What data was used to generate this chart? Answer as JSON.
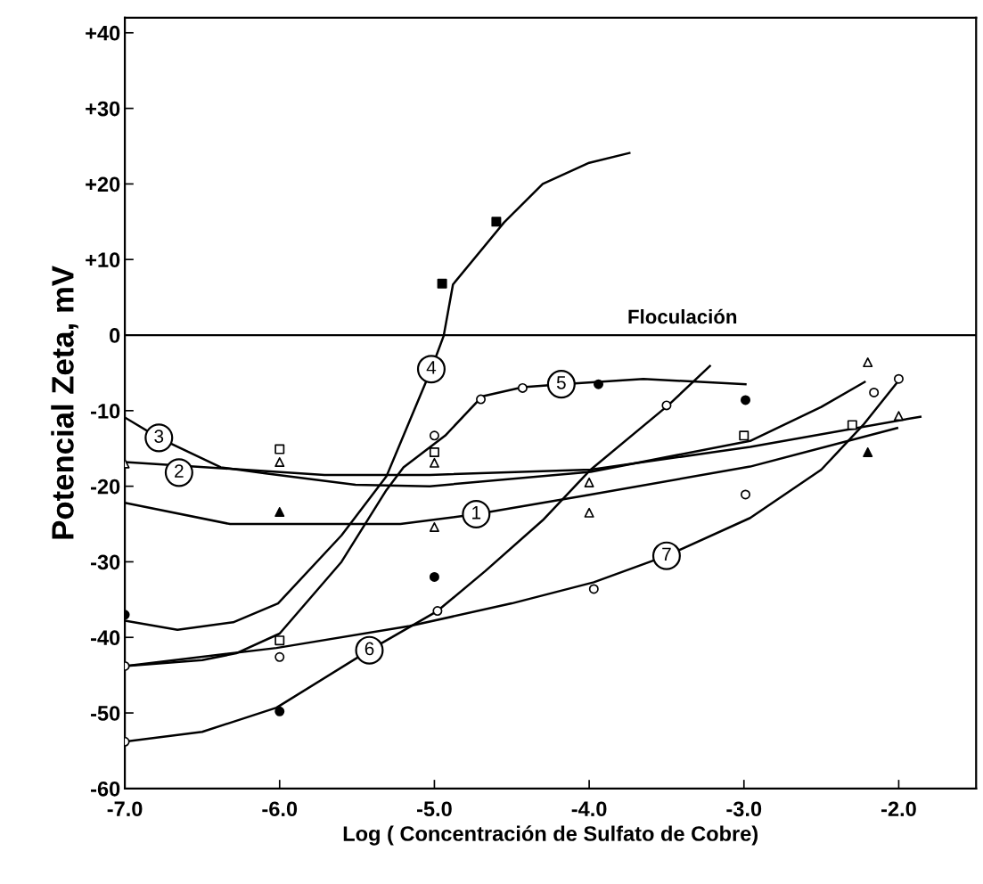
{
  "chart_data": {
    "type": "line",
    "xlabel": "Log ( Concentración de Sulfato de Cobre)",
    "ylabel": "Potencial Zeta, mV",
    "xlim": [
      -7,
      -1.5
    ],
    "ylim": [
      -60,
      42
    ],
    "xticks": [
      {
        "value": -7,
        "label": "-7.0"
      },
      {
        "value": -6,
        "label": "-6.0"
      },
      {
        "value": -5,
        "label": "-5.0"
      },
      {
        "value": -4,
        "label": "-4.0"
      },
      {
        "value": -3,
        "label": "-3.0"
      },
      {
        "value": -2,
        "label": "-2.0"
      }
    ],
    "yticks": [
      -60,
      -50,
      -40,
      -30,
      -20,
      -10,
      0,
      {
        "value": 10,
        "label": "+10"
      },
      {
        "value": 20,
        "label": "+20"
      },
      {
        "value": 30,
        "label": "+30"
      },
      {
        "value": 40,
        "label": "+40"
      }
    ],
    "grid": false,
    "legend": false,
    "marker": "none",
    "line_style": "solid",
    "ref_lines": [
      {
        "axis": "y",
        "value": 0,
        "label": "Floculación",
        "color": "#000000"
      }
    ],
    "series": [
      {
        "color": "#000000",
        "x": [
          -7,
          -6.32,
          -5.22,
          -4.73,
          -3.99,
          -2.96,
          -2.01
        ],
        "values": [
          -22.2,
          -25,
          -25,
          -23.7,
          -21.1,
          -17.4,
          -12.3
        ]
      },
      {
        "color": "#000000",
        "x": [
          -7,
          -5.71,
          -5.03,
          -3.99,
          -2.96,
          -1.86
        ],
        "values": [
          -16.8,
          -18.5,
          -18.5,
          -17.8,
          -14.8,
          -10.8
        ]
      },
      {
        "color": "#000000",
        "x": [
          -7,
          -6.78,
          -6.38,
          -6.09,
          -5.51,
          -5.03,
          -3.99,
          -2.96,
          -2.5,
          -2.22
        ],
        "values": [
          -10.9,
          -13.6,
          -17.5,
          -18.3,
          -19.8,
          -20,
          -18.1,
          -14,
          -9.5,
          -6.2
        ]
      },
      {
        "color": "#000000",
        "x": [
          -7,
          -6.66,
          -6.3,
          -6.01,
          -5.6,
          -5.31,
          -5.02,
          -4.94,
          -4.88,
          -4.55,
          -4.3,
          -4.0,
          -3.74
        ],
        "values": [
          -37.8,
          -39,
          -38,
          -35.5,
          -26.5,
          -18.7,
          -4.5,
          -0.1,
          6.7,
          14.9,
          20,
          22.8,
          24.1
        ]
      },
      {
        "color": "#000000",
        "x": [
          -7,
          -6.5,
          -6.28,
          -6.0,
          -5.6,
          -5.31,
          -5.2,
          -4.93,
          -4.69,
          -4.43,
          -4.18,
          -3.65,
          -2.99
        ],
        "values": [
          -43.8,
          -43,
          -42.1,
          -39.5,
          -30,
          -20.5,
          -17.5,
          -13.3,
          -8.1,
          -6.9,
          -6.5,
          -5.8,
          -6.5
        ]
      },
      {
        "color": "#000000",
        "x": [
          -7,
          -6.5,
          -6.02,
          -5.42,
          -4.98,
          -4.67,
          -4.3,
          -3.99,
          -3.49,
          -3.22
        ],
        "values": [
          -53.8,
          -52.5,
          -49.3,
          -41.7,
          -36.5,
          -31.2,
          -24.5,
          -17.8,
          -9.3,
          -4.1
        ]
      },
      {
        "color": "#000000",
        "x": [
          -7,
          -6.02,
          -5.16,
          -4.5,
          -3.97,
          -3.5,
          -2.96,
          -2.5,
          -2.23,
          -2.0
        ],
        "values": [
          -43.8,
          -41.4,
          -38.5,
          -35.5,
          -32.7,
          -29.2,
          -24.2,
          -17.8,
          -11.9,
          -6.0
        ]
      },
      {
        "type": "scatter",
        "marker": "circle",
        "color": "#ffffff",
        "x": [
          -7,
          -7,
          -6,
          -5,
          -4.7,
          -4.43,
          -3.97,
          -4.98,
          -3.5,
          -2.99,
          -2.16,
          -2.0
        ],
        "values": [
          -43.8,
          -53.8,
          -42.6,
          -13.3,
          -8.5,
          -7,
          -33.6,
          -36.5,
          -9.3,
          -21.1,
          -7.6,
          -5.8
        ]
      },
      {
        "type": "scatter",
        "marker": "circle",
        "color": "#000000",
        "x": [
          -7,
          -6,
          -5,
          -3.94,
          -2.99
        ],
        "values": [
          -37,
          -49.8,
          -32,
          -6.5,
          -8.6
        ]
      },
      {
        "type": "scatter",
        "marker": "triangle",
        "color": "#ffffff",
        "x": [
          -7,
          -6,
          -5,
          -5,
          -4,
          -4,
          -2.2,
          -2
        ],
        "values": [
          -17,
          -16.8,
          -25.4,
          -16.9,
          -23.5,
          -19.5,
          -3.6,
          -10.7
        ]
      },
      {
        "type": "scatter",
        "marker": "triangle",
        "color": "#000000",
        "x": [
          -6,
          -2.2
        ],
        "values": [
          -23.4,
          -15.5
        ]
      },
      {
        "type": "scatter",
        "marker": "square",
        "color": "#ffffff",
        "x": [
          -6,
          -6,
          -5,
          -3,
          -2.3
        ],
        "values": [
          -15.1,
          -40.4,
          -15.5,
          -13.3,
          -11.9
        ]
      },
      {
        "type": "scatter",
        "marker": "square",
        "color": "#000000",
        "x": [
          -4.95,
          -4.6
        ],
        "values": [
          6.8,
          15
        ]
      }
    ],
    "annotations": [
      {
        "text": "1",
        "x": -4.73,
        "y": -23.7
      },
      {
        "text": "2",
        "x": -6.65,
        "y": -18.2
      },
      {
        "text": "3",
        "x": -6.78,
        "y": -13.6
      },
      {
        "text": "4",
        "x": -5.02,
        "y": -4.5
      },
      {
        "text": "5",
        "x": -4.18,
        "y": -6.5
      },
      {
        "text": "6",
        "x": -5.42,
        "y": -41.7
      },
      {
        "text": "7",
        "x": -3.5,
        "y": -29.2
      }
    ]
  }
}
